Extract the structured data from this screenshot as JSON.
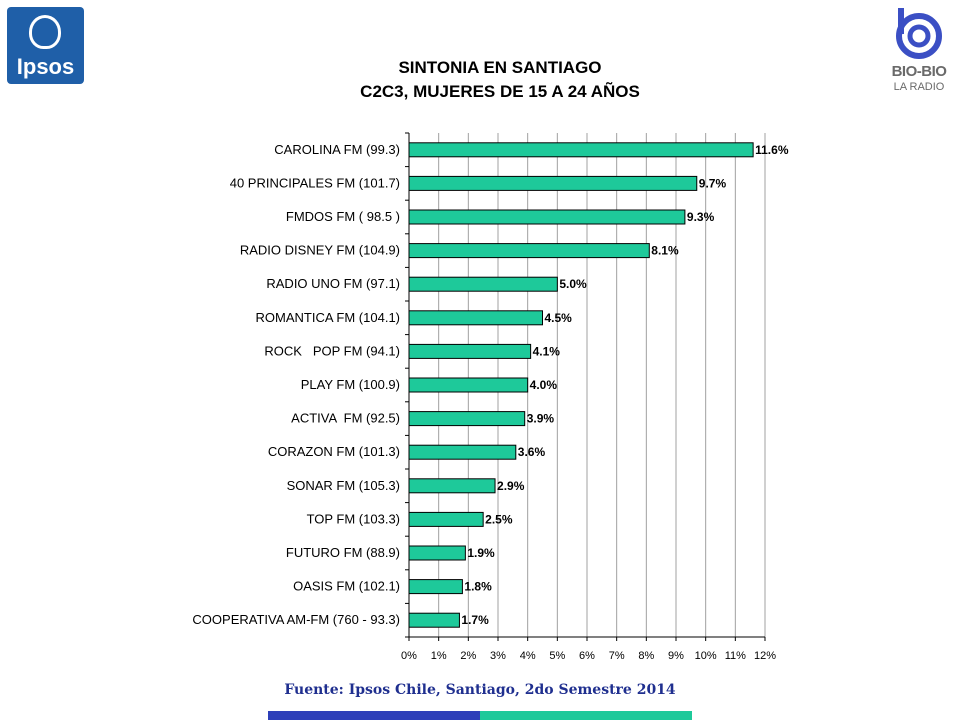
{
  "logos": {
    "ipsos": "Ipsos",
    "biobio": "BIO-BIO",
    "biobio_sub": "LA RADIO"
  },
  "colors": {
    "bar": "#1ec99a",
    "band_left": "#2e3fb9",
    "band_right": "#1ec99a",
    "logo_blue": "#1f5fa8"
  },
  "footer": {
    "source": "Fuente: Ipsos Chile, Santiago, 2do Semestre 2014"
  },
  "chart_data": {
    "type": "bar",
    "orientation": "horizontal",
    "title": "SINTONIA EN SANTIAGO",
    "subtitle": "C2C3, MUJERES DE 15 A 24 AÑOS",
    "categories": [
      "CAROLINA FM (99.3)",
      "40 PRINCIPALES FM (101.7)",
      "FMDOS FM ( 98.5 )",
      "RADIO DISNEY FM (104.9)",
      "RADIO UNO FM (97.1)",
      "ROMANTICA FM (104.1)",
      "ROCK   POP FM (94.1)",
      "PLAY FM (100.9)",
      "ACTIVA  FM (92.5)",
      "CORAZON FM (101.3)",
      "SONAR FM (105.3)",
      "TOP FM (103.3)",
      "FUTURO FM (88.9)",
      "OASIS FM (102.1)",
      "COOPERATIVA AM-FM (760 - 93.3)"
    ],
    "values": [
      11.6,
      9.7,
      9.3,
      8.1,
      5.0,
      4.5,
      4.1,
      4.0,
      3.9,
      3.6,
      2.9,
      2.5,
      1.9,
      1.8,
      1.7
    ],
    "value_labels": [
      "11.6%",
      "9.7%",
      "9.3%",
      "8.1%",
      "5.0%",
      "4.5%",
      "4.1%",
      "4.0%",
      "3.9%",
      "3.6%",
      "2.9%",
      "2.5%",
      "1.9%",
      "1.8%",
      "1.7%"
    ],
    "xlim": [
      0,
      12
    ],
    "x_ticks": [
      "0%",
      "1%",
      "2%",
      "3%",
      "4%",
      "5%",
      "6%",
      "7%",
      "8%",
      "9%",
      "10%",
      "11%",
      "12%"
    ],
    "grid": "vertical",
    "legend": "none"
  }
}
